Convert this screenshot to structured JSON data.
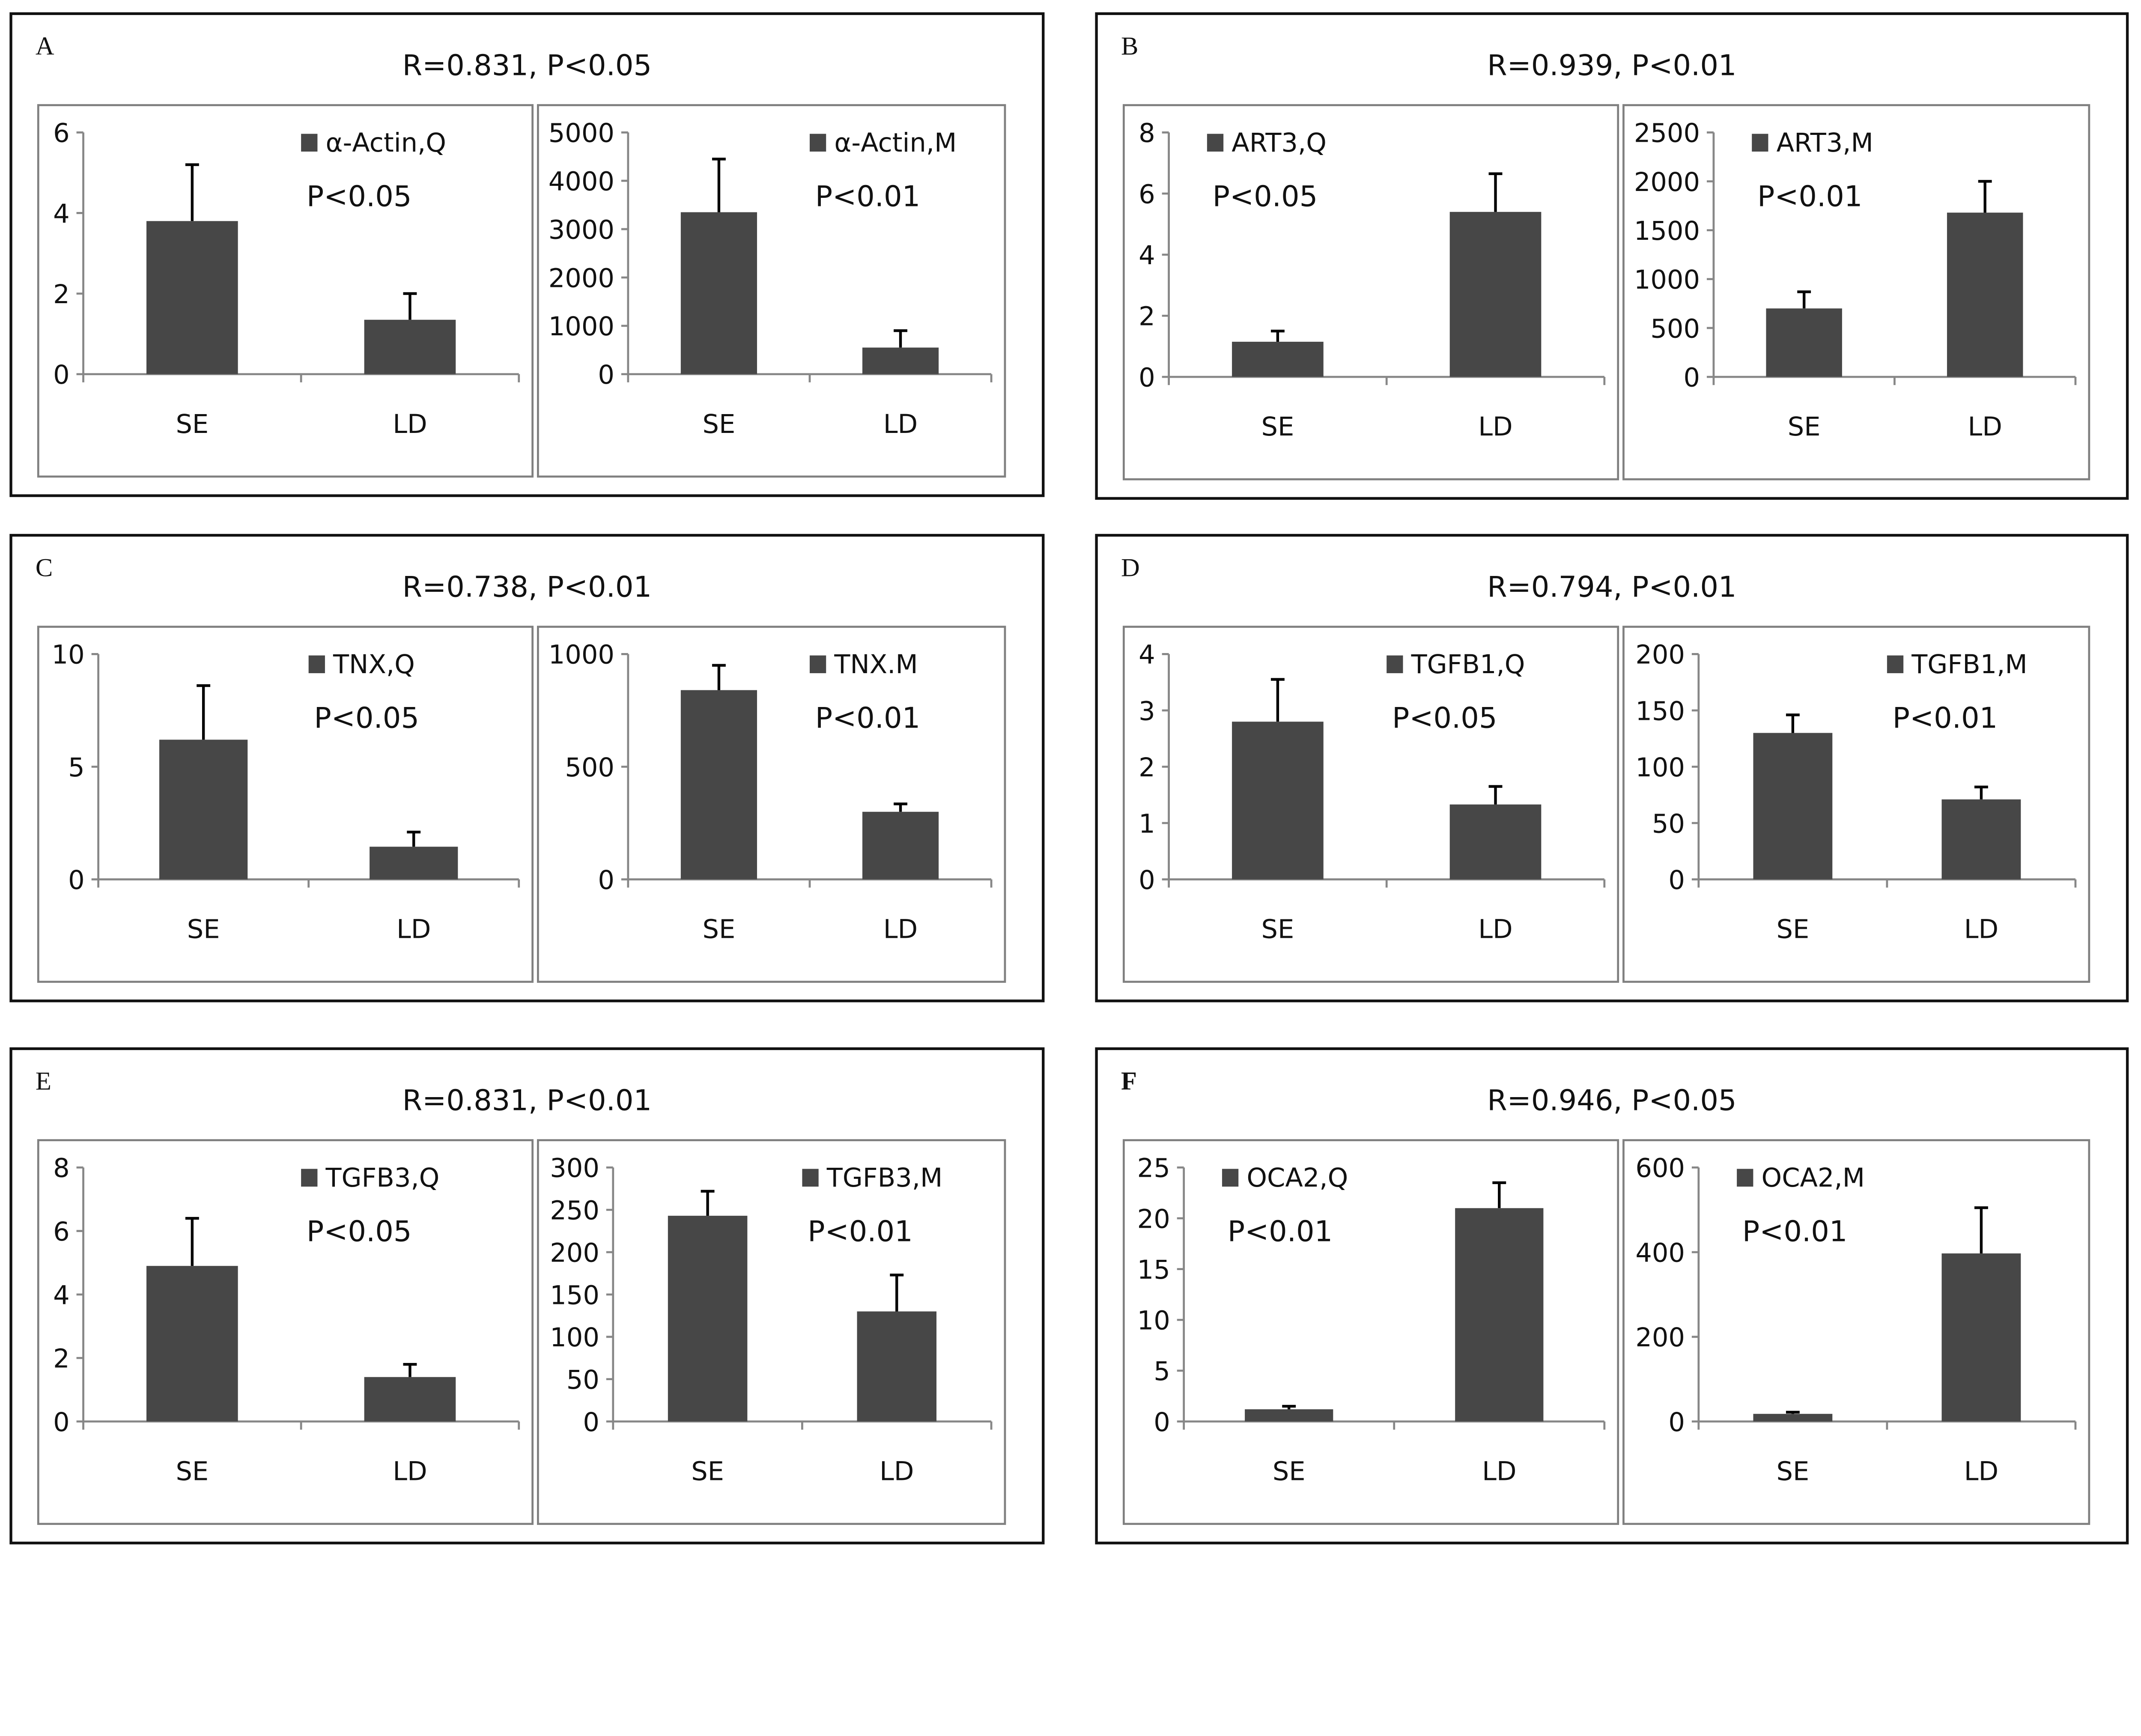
{
  "colors": {
    "bar": "#474747",
    "axis": "#878787",
    "frame": "#111111",
    "subframe": "#808080"
  },
  "chart_data": [
    {
      "panel": "A",
      "title": "R=0.831, P<0.05",
      "charts": [
        {
          "type": "bar",
          "legend": "α-Actin,Q",
          "pvalue": "P<0.05",
          "categories": [
            "SE",
            "LD"
          ],
          "values": [
            3.8,
            1.35
          ],
          "error_upper": [
            5.2,
            2.0
          ],
          "ylim": [
            0,
            6
          ],
          "yticks": [
            0,
            2,
            4,
            6
          ]
        },
        {
          "type": "bar",
          "legend": "α-Actin,M",
          "pvalue": "P<0.01",
          "categories": [
            "SE",
            "LD"
          ],
          "values": [
            3350,
            550
          ],
          "error_upper": [
            4450,
            900
          ],
          "ylim": [
            0,
            5000
          ],
          "yticks": [
            0,
            1000,
            2000,
            3000,
            4000,
            5000
          ]
        }
      ]
    },
    {
      "panel": "B",
      "title": "R=0.939, P<0.01",
      "charts": [
        {
          "type": "bar",
          "legend": "ART3,Q",
          "pvalue": "P<0.05",
          "categories": [
            "SE",
            "LD"
          ],
          "values": [
            1.15,
            5.4
          ],
          "error_upper": [
            1.5,
            6.65
          ],
          "ylim": [
            0,
            8
          ],
          "yticks": [
            0,
            2,
            4,
            6,
            8
          ]
        },
        {
          "type": "bar",
          "legend": "ART3,M",
          "pvalue": "P<0.01",
          "categories": [
            "SE",
            "LD"
          ],
          "values": [
            700,
            1680
          ],
          "error_upper": [
            870,
            2000
          ],
          "ylim": [
            0,
            2500
          ],
          "yticks": [
            0,
            500,
            1000,
            1500,
            2000,
            2500
          ]
        }
      ]
    },
    {
      "panel": "C",
      "title": "R=0.738, P<0.01",
      "charts": [
        {
          "type": "bar",
          "legend": "TNX,Q",
          "pvalue": "P<0.05",
          "categories": [
            "SE",
            "LD"
          ],
          "values": [
            6.2,
            1.45
          ],
          "error_upper": [
            8.6,
            2.1
          ],
          "ylim": [
            0,
            10
          ],
          "yticks": [
            0,
            5,
            10
          ]
        },
        {
          "type": "bar",
          "legend": "TNX.M",
          "pvalue": "P<0.01",
          "categories": [
            "SE",
            "LD"
          ],
          "values": [
            840,
            300
          ],
          "error_upper": [
            950,
            335
          ],
          "ylim": [
            0,
            1000
          ],
          "yticks": [
            0,
            500,
            1000
          ]
        }
      ]
    },
    {
      "panel": "D",
      "title": "R=0.794, P<0.01",
      "charts": [
        {
          "type": "bar",
          "legend": "TGFB1,Q",
          "pvalue": "P<0.05",
          "categories": [
            "SE",
            "LD"
          ],
          "values": [
            2.8,
            1.33
          ],
          "error_upper": [
            3.55,
            1.65
          ],
          "ylim": [
            0,
            4
          ],
          "yticks": [
            0,
            1,
            2,
            3,
            4
          ]
        },
        {
          "type": "bar",
          "legend": "TGFB1,M",
          "pvalue": "P<0.01",
          "categories": [
            "SE",
            "LD"
          ],
          "values": [
            130,
            71
          ],
          "error_upper": [
            146,
            82
          ],
          "ylim": [
            0,
            200
          ],
          "yticks": [
            0,
            50,
            100,
            150,
            200
          ]
        }
      ]
    },
    {
      "panel": "E",
      "title": "R=0.831, P<0.01",
      "charts": [
        {
          "type": "bar",
          "legend": "TGFB3,Q",
          "pvalue": "P<0.05",
          "categories": [
            "SE",
            "LD"
          ],
          "values": [
            4.9,
            1.4
          ],
          "error_upper": [
            6.4,
            1.8
          ],
          "ylim": [
            0,
            8
          ],
          "yticks": [
            0,
            2,
            4,
            6,
            8
          ]
        },
        {
          "type": "bar",
          "legend": "TGFB3,M",
          "pvalue": "P<0.01",
          "categories": [
            "SE",
            "LD"
          ],
          "values": [
            243,
            130
          ],
          "error_upper": [
            272,
            173
          ],
          "ylim": [
            0,
            300
          ],
          "yticks": [
            0,
            50,
            100,
            150,
            200,
            250,
            300
          ]
        }
      ]
    },
    {
      "panel": "F",
      "title": "R=0.946, P<0.05",
      "charts": [
        {
          "type": "bar",
          "legend": "OCA2,Q",
          "pvalue": "P<0.01",
          "categories": [
            "SE",
            "LD"
          ],
          "values": [
            1.2,
            21
          ],
          "error_upper": [
            1.5,
            23.5
          ],
          "ylim": [
            0,
            25
          ],
          "yticks": [
            0,
            5,
            10,
            15,
            20,
            25
          ]
        },
        {
          "type": "bar",
          "legend": "OCA2,M",
          "pvalue": "P<0.01",
          "categories": [
            "SE",
            "LD"
          ],
          "values": [
            18,
            397
          ],
          "error_upper": [
            22,
            505
          ],
          "ylim": [
            0,
            600
          ],
          "yticks": [
            0,
            200,
            400,
            600
          ]
        }
      ]
    }
  ]
}
